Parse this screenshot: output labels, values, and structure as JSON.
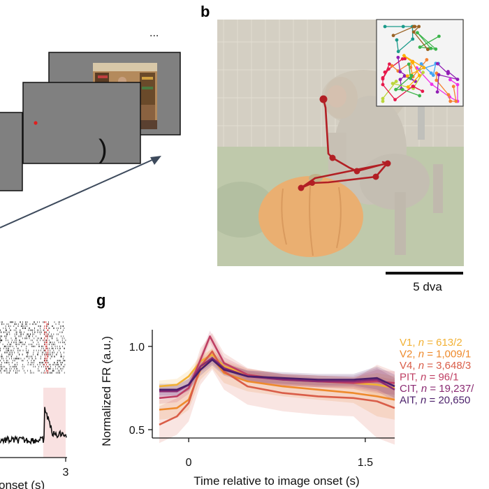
{
  "panel_letters": {
    "b": "b",
    "g": "g"
  },
  "panel_a": {
    "ellipsis": "...",
    "paren": ")"
  },
  "panel_b": {
    "scalebar_label": "5 dva"
  },
  "panel_f": {
    "xtick_end": "3",
    "xlabel_fragment": "onset (s)"
  },
  "colors": {
    "V1": "#f2b134",
    "V2": "#ee8a2c",
    "V4": "#d95d48",
    "PIT": "#bf3f63",
    "CIT": "#8a2a72",
    "AIT": "#4a1f6a",
    "gaze": "#b21f24"
  },
  "chart_data": {
    "type": "line",
    "xlabel": "Time relative to image onset (s)",
    "ylabel": "Normalized FR (a.u.)",
    "xlim": [
      -0.25,
      1.75
    ],
    "ylim": [
      0.45,
      1.1
    ],
    "xticks": [
      "0",
      "1.5"
    ],
    "yticks": [
      "1.0",
      "0.5"
    ],
    "legend_position": "right",
    "series": [
      {
        "name": "V1",
        "label_prefix": "V1, ",
        "n_label": "n",
        "n_value": " = 613/2",
        "x": [
          -0.25,
          -0.1,
          0,
          0.1,
          0.2,
          0.3,
          0.5,
          0.8,
          1.1,
          1.4,
          1.6,
          1.75
        ],
        "y": [
          0.76,
          0.77,
          0.82,
          0.91,
          0.95,
          0.88,
          0.83,
          0.8,
          0.79,
          0.78,
          0.77,
          0.75
        ]
      },
      {
        "name": "V2",
        "label_prefix": "V2, ",
        "n_label": "n",
        "n_value": " = 1,009/1",
        "x": [
          -0.25,
          -0.1,
          0,
          0.1,
          0.2,
          0.3,
          0.5,
          0.8,
          1.1,
          1.4,
          1.6,
          1.75
        ],
        "y": [
          0.62,
          0.63,
          0.68,
          0.86,
          0.93,
          0.84,
          0.79,
          0.76,
          0.74,
          0.72,
          0.7,
          0.68
        ]
      },
      {
        "name": "V4",
        "label_prefix": "V4, ",
        "n_label": "n",
        "n_value": " = 3,648/3",
        "x": [
          -0.25,
          -0.1,
          0,
          0.1,
          0.2,
          0.3,
          0.5,
          0.8,
          1.1,
          1.4,
          1.6,
          1.75
        ],
        "y": [
          0.53,
          0.58,
          0.66,
          0.88,
          0.97,
          0.85,
          0.76,
          0.72,
          0.7,
          0.69,
          0.67,
          0.63
        ]
      },
      {
        "name": "PIT",
        "label_prefix": "PIT, ",
        "n_label": "n",
        "n_value": " = 96/1",
        "x": [
          -0.25,
          -0.1,
          0,
          0.1,
          0.18,
          0.3,
          0.5,
          0.8,
          1.1,
          1.4,
          1.6,
          1.75
        ],
        "y": [
          0.69,
          0.7,
          0.75,
          0.92,
          1.06,
          0.9,
          0.83,
          0.8,
          0.79,
          0.78,
          0.79,
          0.78
        ]
      },
      {
        "name": "CIT",
        "label_prefix": "CIT, ",
        "n_label": "n",
        "n_value": " = 19,237/",
        "x": [
          -0.25,
          -0.1,
          0,
          0.1,
          0.2,
          0.3,
          0.5,
          0.8,
          1.1,
          1.4,
          1.6,
          1.75
        ],
        "y": [
          0.73,
          0.73,
          0.77,
          0.88,
          0.93,
          0.87,
          0.82,
          0.8,
          0.79,
          0.79,
          0.8,
          0.74
        ]
      },
      {
        "name": "AIT",
        "label_prefix": "AIT, ",
        "n_label": "n",
        "n_value": " = 20,650",
        "x": [
          -0.25,
          -0.1,
          0,
          0.1,
          0.2,
          0.3,
          0.5,
          0.8,
          1.1,
          1.4,
          1.6,
          1.75
        ],
        "y": [
          0.74,
          0.74,
          0.77,
          0.86,
          0.92,
          0.86,
          0.82,
          0.81,
          0.8,
          0.8,
          0.81,
          0.76
        ]
      }
    ]
  }
}
